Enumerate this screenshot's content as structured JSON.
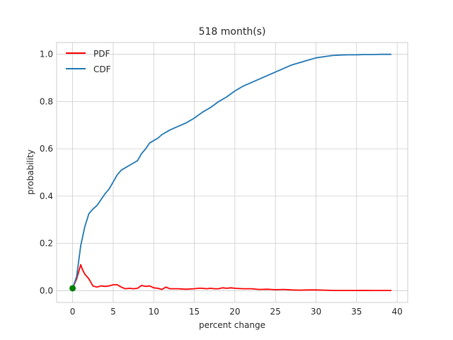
{
  "chart_data": {
    "type": "line",
    "title": "518 month(s)",
    "xlabel": "percent change",
    "ylabel": "probability",
    "xlim": [
      -1.97,
      41.3
    ],
    "ylim": [
      -0.05,
      1.05
    ],
    "x_ticks": [
      0,
      5,
      10,
      15,
      20,
      25,
      30,
      35,
      40
    ],
    "y_ticks": [
      0.0,
      0.2,
      0.4,
      0.6,
      0.8,
      1.0
    ],
    "x_tick_labels": [
      "0",
      "5",
      "10",
      "15",
      "20",
      "25",
      "30",
      "35",
      "40"
    ],
    "y_tick_labels": [
      "0.0",
      "0.2",
      "0.4",
      "0.6",
      "0.8",
      "1.0"
    ],
    "grid": true,
    "legend": "upper-left",
    "series": [
      {
        "name": "PDF",
        "color": "#ff0000",
        "x": [
          0,
          0.5,
          1.0,
          1.2,
          1.5,
          2.0,
          2.5,
          3.0,
          3.5,
          4.0,
          4.5,
          5.0,
          5.5,
          6.0,
          6.5,
          7.0,
          7.5,
          8.0,
          8.5,
          9.0,
          9.5,
          10.0,
          10.5,
          11.0,
          11.5,
          12.0,
          12.5,
          13.0,
          14.0,
          15.0,
          15.5,
          16.0,
          16.5,
          17.0,
          17.5,
          18.0,
          18.5,
          19.0,
          19.5,
          20.0,
          21.0,
          22.0,
          23.0,
          24.0,
          25.0,
          26.0,
          27.0,
          28.0,
          29.0,
          30.0,
          31.0,
          32.0,
          33.0,
          34.0,
          35.0,
          36.0,
          37.0,
          38.0,
          39.3
        ],
        "values": [
          0.01,
          0.05,
          0.11,
          0.09,
          0.07,
          0.05,
          0.02,
          0.015,
          0.02,
          0.018,
          0.02,
          0.025,
          0.025,
          0.015,
          0.008,
          0.01,
          0.008,
          0.01,
          0.022,
          0.018,
          0.02,
          0.012,
          0.01,
          0.005,
          0.015,
          0.008,
          0.008,
          0.008,
          0.006,
          0.008,
          0.01,
          0.01,
          0.008,
          0.01,
          0.008,
          0.008,
          0.012,
          0.01,
          0.012,
          0.01,
          0.008,
          0.008,
          0.005,
          0.006,
          0.004,
          0.005,
          0.003,
          0.002,
          0.003,
          0.003,
          0.002,
          0.001,
          0.0005,
          0.0005,
          0.0005,
          0.001,
          0.0005,
          0.0005,
          0.0005
        ]
      },
      {
        "name": "CDF",
        "color": "#1f77b4",
        "x": [
          0,
          0.5,
          1.0,
          1.5,
          2.0,
          2.5,
          3.0,
          3.5,
          4.0,
          4.5,
          5.0,
          5.5,
          6.0,
          6.5,
          7.0,
          7.5,
          8.0,
          8.5,
          9.0,
          9.5,
          10.0,
          10.5,
          11.0,
          12.0,
          13.0,
          14.0,
          15.0,
          16.0,
          17.0,
          18.0,
          19.0,
          20.0,
          21.0,
          22.0,
          23.0,
          24.0,
          25.0,
          26.0,
          27.0,
          28.0,
          29.0,
          30.0,
          31.0,
          32.0,
          33.0,
          34.0,
          35.0,
          36.0,
          37.0,
          38.0,
          39.3
        ],
        "values": [
          0.01,
          0.06,
          0.19,
          0.27,
          0.325,
          0.345,
          0.36,
          0.385,
          0.41,
          0.43,
          0.46,
          0.49,
          0.51,
          0.52,
          0.53,
          0.54,
          0.55,
          0.58,
          0.6,
          0.625,
          0.635,
          0.645,
          0.66,
          0.68,
          0.695,
          0.71,
          0.73,
          0.755,
          0.775,
          0.8,
          0.82,
          0.845,
          0.865,
          0.88,
          0.895,
          0.91,
          0.925,
          0.94,
          0.955,
          0.965,
          0.975,
          0.985,
          0.99,
          0.995,
          0.997,
          0.998,
          0.998,
          0.999,
          0.999,
          1.0,
          1.0
        ]
      }
    ],
    "marker": {
      "x": 0,
      "y": 0.01,
      "color": "#008000"
    }
  }
}
